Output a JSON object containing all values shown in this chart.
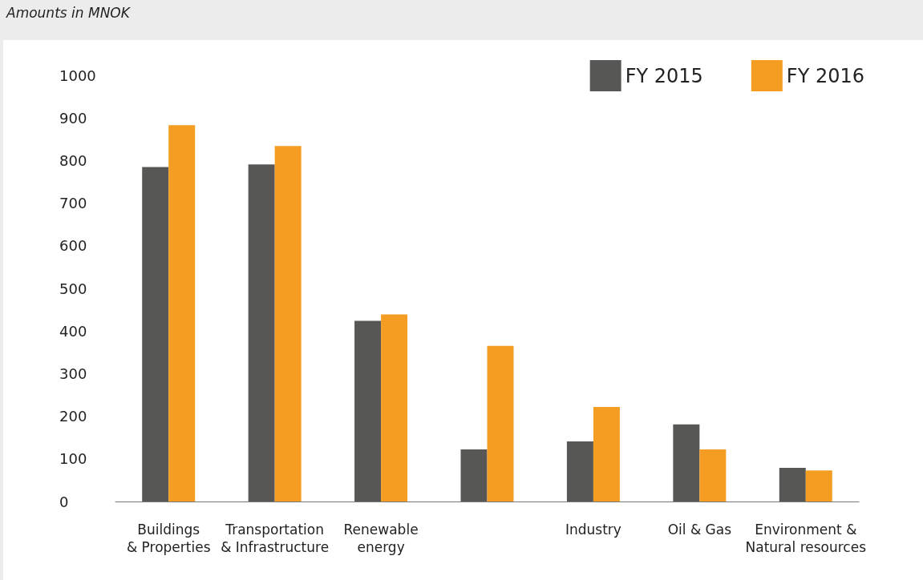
{
  "chart_data": {
    "type": "bar",
    "title": "Amounts in MNOK",
    "categories": [
      "Buildings\n& Properties",
      "Transportation\n& Infrastructure",
      "Renewable\nenergy",
      null,
      "Industry",
      "Oil & Gas",
      "Environment &\nNatural resources"
    ],
    "series": [
      {
        "name": "FY 2015",
        "color": "#575755",
        "values": [
          785,
          791,
          424,
          122,
          141,
          181,
          79
        ]
      },
      {
        "name": "FY 2016",
        "color": "#f59c23",
        "values": [
          883,
          834,
          439,
          365,
          222,
          122,
          73
        ]
      }
    ],
    "ylim": [
      0,
      1000
    ],
    "yticks": [
      0,
      100,
      200,
      300,
      400,
      500,
      600,
      700,
      800,
      900,
      1000
    ],
    "grid": false,
    "legend": "top right"
  }
}
